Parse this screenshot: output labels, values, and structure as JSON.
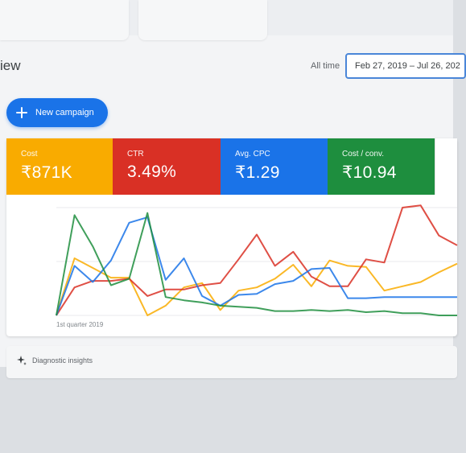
{
  "header": {
    "title": "iew",
    "date_filter_label": "All time",
    "date_range": "Feb 27, 2019 – Jul 26, 202"
  },
  "actions": {
    "new_campaign_label": "New campaign"
  },
  "metrics": [
    {
      "label": "Cost",
      "value": "₹871K",
      "color": "#f9ab00"
    },
    {
      "label": "CTR",
      "value": "3.49%",
      "color": "#d93025"
    },
    {
      "label": "Avg. CPC",
      "value": "₹1.29",
      "color": "#1a73e8"
    },
    {
      "label": "Cost / conv.",
      "value": "₹10.94",
      "color": "#1e8e3e"
    }
  ],
  "chart_data": {
    "type": "line",
    "title": "",
    "xlabel": "1st quarter 2019",
    "ylabel": "",
    "ylim": [
      0,
      100
    ],
    "grid": true,
    "x": [
      0,
      1,
      2,
      3,
      4,
      5,
      6,
      7,
      8,
      9,
      10,
      11,
      12,
      13,
      14,
      15,
      16,
      17,
      18,
      19,
      20,
      21,
      22
    ],
    "series": [
      {
        "name": "",
        "color": "#f9ab00",
        "values": [
          0,
          53,
          44,
          35,
          35,
          0,
          9,
          26,
          30,
          5,
          23,
          26,
          34,
          47,
          27,
          51,
          46,
          45,
          23,
          27,
          31,
          40,
          48
        ]
      },
      {
        "name": "",
        "color": "#d93025",
        "values": [
          0,
          26,
          32,
          32,
          34,
          18,
          24,
          24,
          28,
          30,
          52,
          75,
          46,
          59,
          36,
          27,
          27,
          52,
          49,
          100,
          102,
          74,
          65
        ]
      },
      {
        "name": "",
        "color": "#1a73e8",
        "values": [
          0,
          46,
          31,
          51,
          86,
          91,
          33,
          53,
          18,
          9,
          19,
          20,
          29,
          32,
          43,
          44,
          16,
          16,
          17,
          17,
          17,
          17,
          17
        ]
      },
      {
        "name": "",
        "color": "#1e8e3e",
        "values": [
          0,
          93,
          64,
          28,
          34,
          95,
          17,
          14,
          12,
          9,
          8,
          7,
          4,
          4,
          5,
          4,
          5,
          3,
          4,
          2,
          2,
          0,
          0
        ]
      }
    ]
  },
  "diagnostics": {
    "label": "Diagnostic insights"
  }
}
